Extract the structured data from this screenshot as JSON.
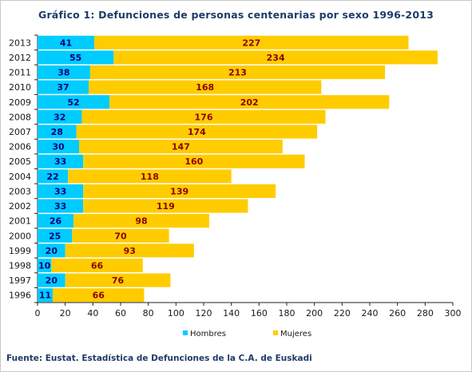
{
  "chart_data": {
    "type": "bar",
    "orientation": "horizontal",
    "stacked": true,
    "title": "Gráfico 1: Defunciones de personas centenarias por sexo 1996-2013",
    "categories": [
      "2013",
      "2012",
      "2011",
      "2010",
      "2009",
      "2008",
      "2007",
      "2006",
      "2005",
      "2004",
      "2003",
      "2002",
      "2001",
      "2000",
      "1999",
      "1998",
      "1997",
      "1996"
    ],
    "series": [
      {
        "name": "Hombres",
        "color": "#00ccff",
        "values": [
          41,
          55,
          38,
          37,
          52,
          32,
          28,
          30,
          33,
          22,
          33,
          33,
          26,
          25,
          20,
          10,
          20,
          11
        ]
      },
      {
        "name": "Mujeres",
        "color": "#ffcc00",
        "values": [
          227,
          234,
          213,
          168,
          202,
          176,
          174,
          147,
          160,
          118,
          139,
          119,
          98,
          70,
          93,
          66,
          76,
          66
        ]
      }
    ],
    "xlim": [
      0,
      300
    ],
    "xticks": [
      0,
      20,
      40,
      60,
      80,
      100,
      120,
      140,
      160,
      180,
      200,
      220,
      240,
      260,
      280,
      300
    ],
    "xlabel": "",
    "ylabel": "",
    "grid": false,
    "legend_position": "bottom"
  },
  "source": "Fuente: Eustat. Estadística de Defunciones de la C.A. de Euskadi"
}
